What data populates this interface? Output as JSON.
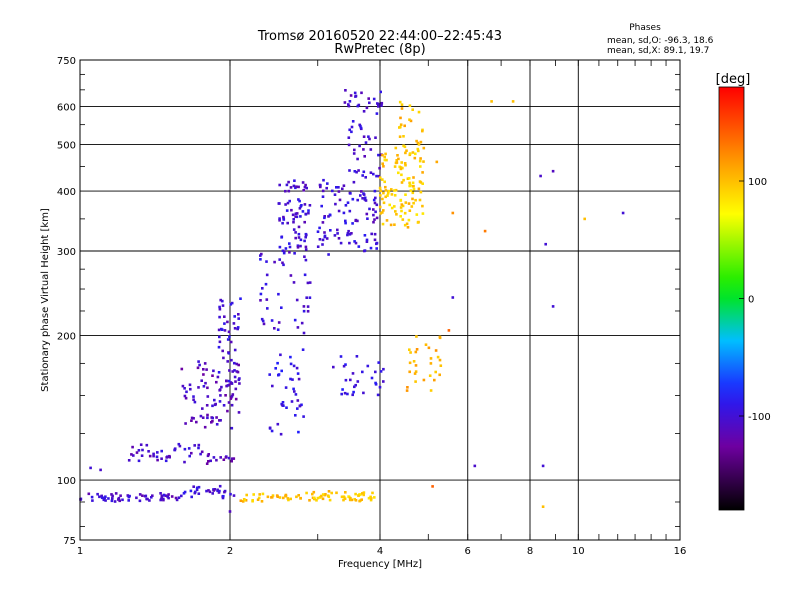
{
  "chart_data": {
    "type": "scatter",
    "title": "Tromsø 20160520 22:44:00–22:45:43",
    "subtitle": "RwPretec (8p)",
    "xlabel": "Frequency [MHz]",
    "ylabel": "Stationary phase Virtual Height [km]",
    "x_scale": "log",
    "y_scale": "log",
    "xlim": [
      1,
      16
    ],
    "ylim": [
      75,
      750
    ],
    "grid": true,
    "x_ticks": [
      1,
      2,
      4,
      6,
      8,
      10,
      16
    ],
    "x_tick_labels": [
      "1",
      "2",
      "4",
      "6",
      "8",
      "10",
      "16"
    ],
    "y_ticks": [
      75,
      100,
      200,
      300,
      400,
      500,
      600,
      750
    ],
    "y_tick_labels": [
      "75",
      "100",
      "200",
      "300",
      "400",
      "500",
      "600",
      "750"
    ],
    "stats": {
      "heading": "Phases",
      "line_o": "mean, sd,O: -96.3, 18.6",
      "line_x": "mean, sd,X:  89.1, 19.7"
    },
    "colorbar": {
      "label": "[deg]",
      "range": [
        -180,
        180
      ],
      "ticks": [
        -100,
        0,
        100
      ],
      "tick_labels": [
        "-100",
        "0",
        "100"
      ]
    },
    "traces": [
      {
        "x": [
          1.0,
          1.6
        ],
        "y": [
          92,
          92
        ],
        "phase": -105,
        "n": 60
      },
      {
        "x": [
          1.6,
          2.05
        ],
        "y": [
          93,
          96
        ],
        "phase": -100,
        "n": 30
      },
      {
        "x": [
          2.1,
          2.6
        ],
        "y": [
          92,
          92
        ],
        "phase": 100,
        "n": 25
      },
      {
        "x": [
          2.6,
          3.9
        ],
        "y": [
          92,
          93
        ],
        "phase": 95,
        "n": 60
      },
      {
        "x": [
          1.25,
          1.8
        ],
        "y": [
          110,
          118
        ],
        "phase": -105,
        "n": 40
      },
      {
        "x": [
          1.8,
          2.1
        ],
        "y": [
          110,
          112
        ],
        "phase": -110,
        "n": 15
      },
      {
        "x": [
          1.6,
          2.1
        ],
        "y": [
          130,
          175
        ],
        "phase": -110,
        "n": 80
      },
      {
        "x": [
          1.9,
          2.1
        ],
        "y": [
          150,
          240
        ],
        "phase": -100,
        "n": 50
      },
      {
        "x": [
          2.4,
          2.85
        ],
        "y": [
          120,
          185
        ],
        "phase": -95,
        "n": 40
      },
      {
        "x": [
          2.3,
          2.9
        ],
        "y": [
          200,
          300
        ],
        "phase": -100,
        "n": 40
      },
      {
        "x": [
          2.5,
          2.9
        ],
        "y": [
          290,
          420
        ],
        "phase": -100,
        "n": 80
      },
      {
        "x": [
          3.0,
          3.95
        ],
        "y": [
          300,
          420
        ],
        "phase": -100,
        "n": 100
      },
      {
        "x": [
          3.4,
          4.05
        ],
        "y": [
          420,
          650
        ],
        "phase": -105,
        "n": 60
      },
      {
        "x": [
          4.0,
          4.9
        ],
        "y": [
          340,
          480
        ],
        "phase": 95,
        "n": 110
      },
      {
        "x": [
          4.3,
          4.9
        ],
        "y": [
          470,
          620
        ],
        "phase": 100,
        "n": 30
      },
      {
        "x": [
          3.2,
          4.1
        ],
        "y": [
          150,
          180
        ],
        "phase": -95,
        "n": 30
      },
      {
        "x": [
          4.5,
          5.3
        ],
        "y": [
          150,
          200
        ],
        "phase": 105,
        "n": 30
      }
    ],
    "isolated_points": [
      {
        "x": 6.2,
        "y": 107,
        "phase": -105
      },
      {
        "x": 8.5,
        "y": 107,
        "phase": -100
      },
      {
        "x": 8.4,
        "y": 430,
        "phase": -105
      },
      {
        "x": 8.9,
        "y": 440,
        "phase": -110
      },
      {
        "x": 10.3,
        "y": 350,
        "phase": 100
      },
      {
        "x": 12.3,
        "y": 360,
        "phase": -100
      },
      {
        "x": 8.6,
        "y": 310,
        "phase": -100
      },
      {
        "x": 8.9,
        "y": 230,
        "phase": -100
      },
      {
        "x": 6.7,
        "y": 615,
        "phase": 100
      },
      {
        "x": 7.4,
        "y": 615,
        "phase": 100
      },
      {
        "x": 5.6,
        "y": 360,
        "phase": 120
      },
      {
        "x": 5.2,
        "y": 460,
        "phase": 110
      },
      {
        "x": 6.5,
        "y": 330,
        "phase": 130
      },
      {
        "x": 5.5,
        "y": 205,
        "phase": 140
      },
      {
        "x": 5.6,
        "y": 240,
        "phase": -100
      },
      {
        "x": 8.5,
        "y": 88,
        "phase": 100
      },
      {
        "x": 5.1,
        "y": 97,
        "phase": 140
      },
      {
        "x": 2.0,
        "y": 86,
        "phase": -110
      },
      {
        "x": 1.05,
        "y": 106,
        "phase": -100
      },
      {
        "x": 1.1,
        "y": 105,
        "phase": -105
      }
    ]
  }
}
